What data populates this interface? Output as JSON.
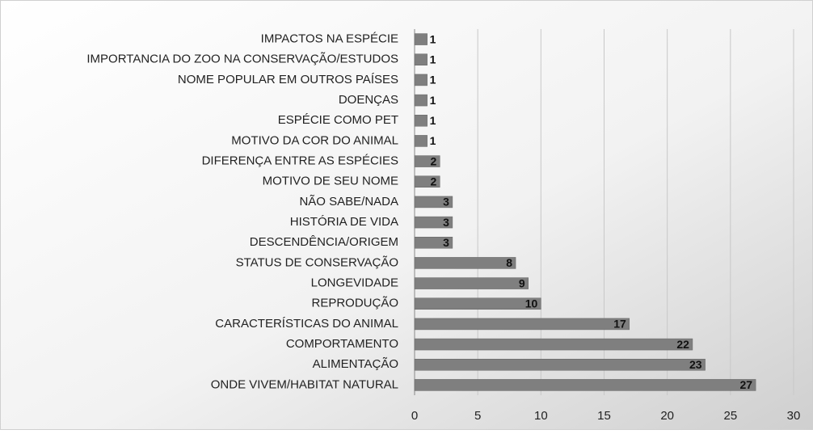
{
  "chart_data": {
    "type": "barh",
    "categories": [
      "IMPACTOS NA ESPÉCIE",
      "IMPORTANCIA DO ZOO NA CONSERVAÇÃO/ESTUDOS",
      "NOME POPULAR EM OUTROS PAÍSES",
      "DOENÇAS",
      "ESPÉCIE COMO PET",
      "MOTIVO DA COR DO ANIMAL",
      "DIFERENÇA ENTRE AS ESPÉCIES",
      "MOTIVO DE SEU NOME",
      "NÃO SABE/NADA",
      "HISTÓRIA DE VIDA",
      "DESCENDÊNCIA/ORIGEM",
      "STATUS DE CONSERVAÇÃO",
      "LONGEVIDADE",
      "REPRODUÇÃO",
      "CARACTERÍSTICAS DO ANIMAL",
      "COMPORTAMENTO",
      "ALIMENTAÇÃO",
      "ONDE VIVEM/HABITAT NATURAL"
    ],
    "values": [
      1,
      1,
      1,
      1,
      1,
      1,
      2,
      2,
      3,
      3,
      3,
      8,
      9,
      10,
      17,
      22,
      23,
      27
    ],
    "color": "#7f7f7f",
    "xlim": [
      0,
      30
    ],
    "xticks": [
      0,
      5,
      10,
      15,
      20,
      25,
      30
    ],
    "grid": true
  }
}
